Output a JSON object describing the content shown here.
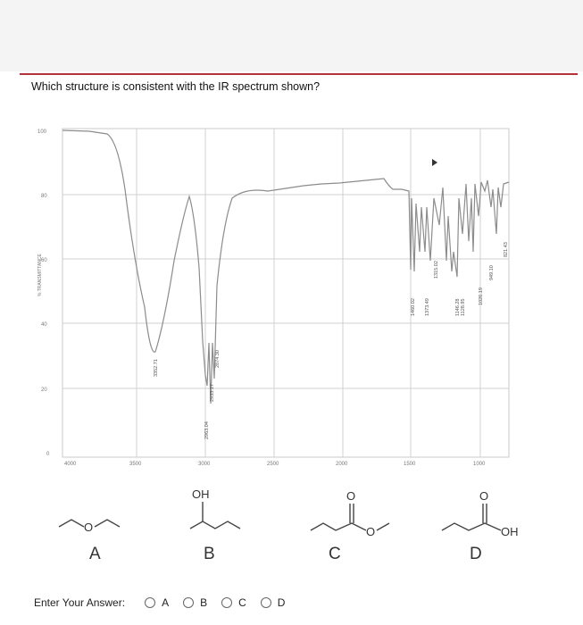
{
  "question": "Which structure is consistent with the IR spectrum shown?",
  "spectrum": {
    "ylabel": "% TRANSMITTANCE",
    "y_ticks": [
      "100",
      "80",
      "60",
      "40",
      "20",
      "0"
    ],
    "x_ticks": [
      "4000",
      "3500",
      "3000",
      "2500",
      "2000",
      "1500",
      "1000"
    ],
    "peak_labels": [
      "3352.71",
      "2963.04",
      "2933.17",
      "2874.30",
      "1460.02",
      "1373.49",
      "1315.02",
      "1146.28",
      "1128.95",
      "1026.19",
      "949.10",
      "821.43"
    ],
    "line_color": "#8c8c8c"
  },
  "structures": [
    {
      "letter": "A",
      "atom_labels": [
        "O"
      ]
    },
    {
      "letter": "B",
      "atom_labels": [
        "OH"
      ]
    },
    {
      "letter": "C",
      "atom_labels": [
        "O",
        "O"
      ]
    },
    {
      "letter": "D",
      "atom_labels": [
        "O",
        "OH"
      ]
    }
  ],
  "answer": {
    "label": "Enter Your Answer:",
    "options": [
      "A",
      "B",
      "C",
      "D"
    ]
  }
}
